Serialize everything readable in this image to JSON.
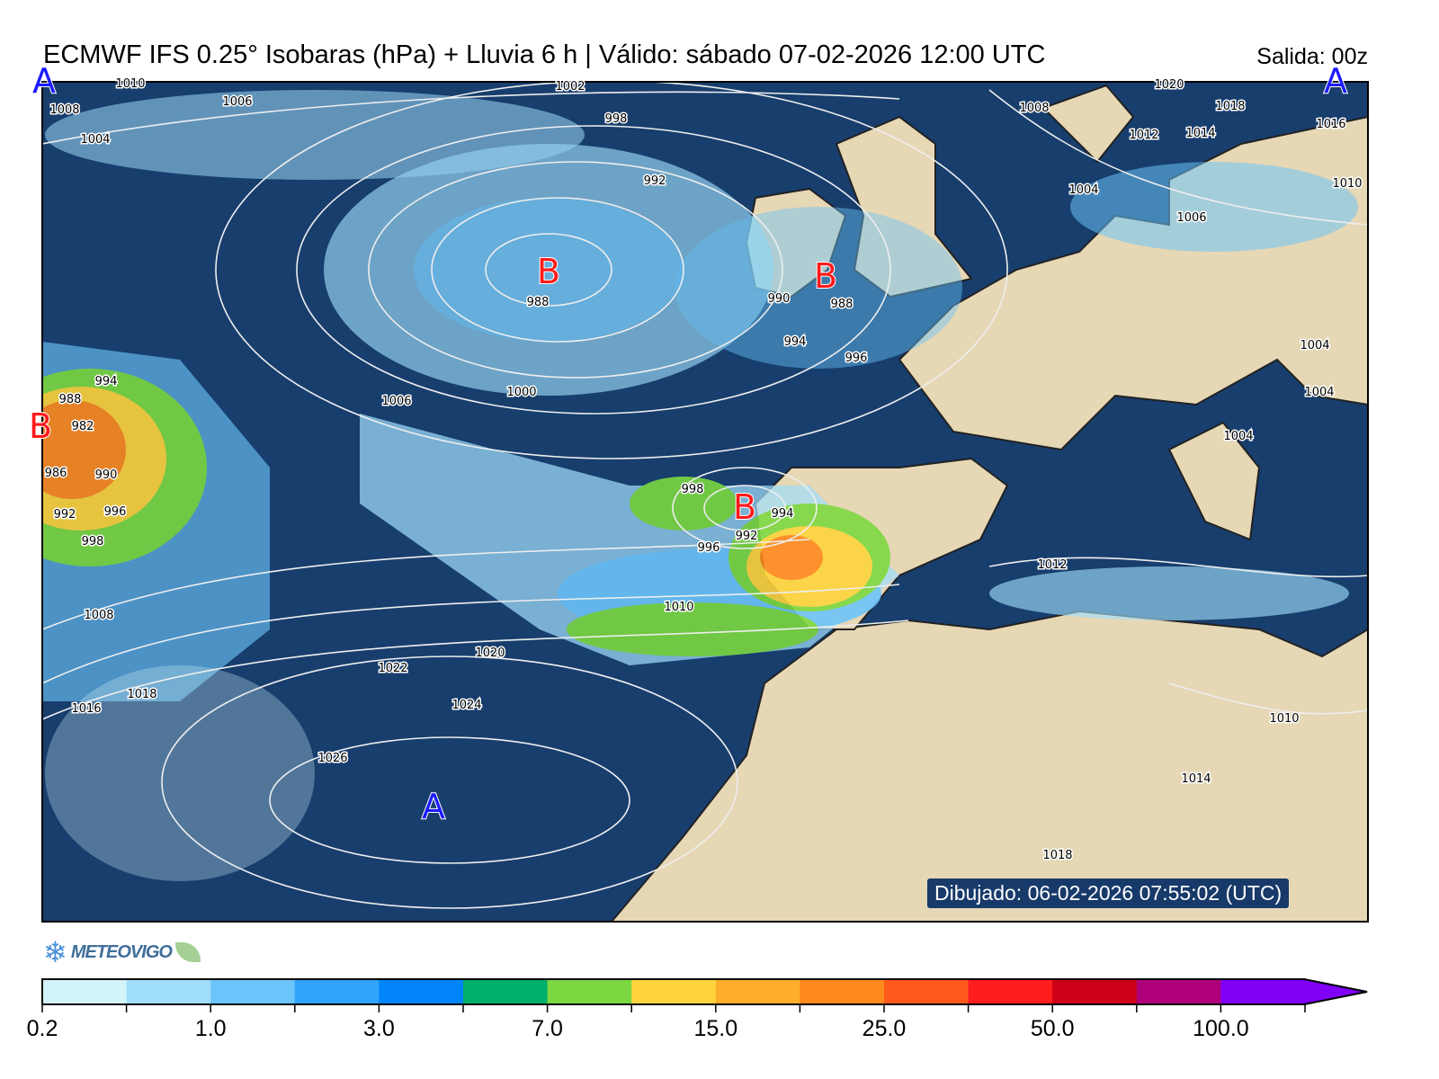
{
  "header": {
    "title": "ECMWF IFS 0.25° Isobaras (hPa) + Lluvia 6 h | Válido: sábado 07-02-2026 12:00 UTC",
    "run": "Salida: 00z"
  },
  "map": {
    "ocean_color": "#173e6d",
    "land_color": "#e6d7b5",
    "pressure_centers": [
      {
        "label": "A",
        "type": "high",
        "color": "#1a1aff"
      },
      {
        "label": "A",
        "type": "high",
        "color": "#1a1aff"
      },
      {
        "label": "B",
        "type": "low",
        "color": "#ff1a1a"
      },
      {
        "label": "B",
        "type": "low",
        "color": "#ff1a1a"
      },
      {
        "label": "B",
        "type": "low",
        "color": "#ff1a1a"
      },
      {
        "label": "B",
        "type": "low",
        "color": "#ff1a1a"
      },
      {
        "label": "A",
        "type": "high",
        "color": "#1a1aff"
      }
    ],
    "isobar_labels": [
      "1010",
      "1008",
      "1004",
      "1006",
      "1002",
      "998",
      "992",
      "988",
      "990",
      "994",
      "996",
      "1000",
      "1006",
      "1008",
      "1004",
      "1012",
      "1014",
      "1018",
      "1016",
      "1010",
      "1020",
      "1006",
      "1004",
      "1004",
      "1004",
      "1012",
      "1010",
      "1014",
      "1018",
      "994",
      "988",
      "982",
      "986",
      "990",
      "992",
      "996",
      "998",
      "1008",
      "1016",
      "1018",
      "1022",
      "1020",
      "1024",
      "1026",
      "1010",
      "998",
      "992",
      "994",
      "996",
      "988"
    ],
    "drawn_timestamp": "Dibujado: 06-02-2026 07:55:02 (UTC)"
  },
  "logo": {
    "text": "METEOVIGO",
    "icon": "snowflake-icon"
  },
  "colorbar": {
    "colors": [
      "#d4f4fc",
      "#a1defb",
      "#6cc5fa",
      "#2fa3fa",
      "#0284fa",
      "#00b06c",
      "#7cd840",
      "#fed43b",
      "#feae2a",
      "#fe8a1e",
      "#fe5a1c",
      "#fe1c1c",
      "#cc0018",
      "#b0007c",
      "#8000f8"
    ],
    "tick_labels": [
      "0.2",
      "1.0",
      "3.0",
      "7.0",
      "15.0",
      "25.0",
      "50.0",
      "100.0"
    ],
    "extend": "max"
  }
}
